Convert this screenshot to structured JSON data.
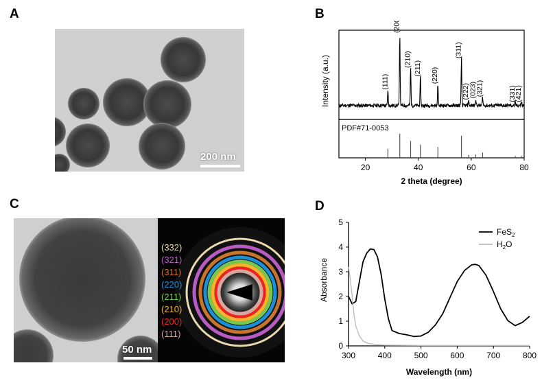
{
  "panels": {
    "a": "A",
    "b": "B",
    "c": "C",
    "d": "D"
  },
  "tem_a": {
    "scale_label": "200 nm"
  },
  "tem_c": {
    "scale_label": "50 nm"
  },
  "saed": {
    "rings": [
      {
        "label": "(332)",
        "color": "#ead9b0"
      },
      {
        "label": "(321)",
        "color": "#b85cc4"
      },
      {
        "label": "(311)",
        "color": "#c8742e"
      },
      {
        "label": "(220)",
        "color": "#1c8fd6"
      },
      {
        "label": "(211)",
        "color": "#78c850"
      },
      {
        "label": "(210)",
        "color": "#f4b42c"
      },
      {
        "label": "(200)",
        "color": "#ee2222"
      },
      {
        "label": "(111)",
        "color": "#d8a8a0"
      }
    ]
  },
  "chart_data": [
    {
      "type": "line",
      "panel": "B",
      "ylabel": "Intensity (a.u.)",
      "xlabel": "2 theta (degree)",
      "xlim": [
        10,
        80
      ],
      "xticks": [
        "20",
        "40",
        "60",
        "80"
      ],
      "reference_label": "PDF#71-0053",
      "peaks": [
        {
          "x": 28.5,
          "y": 0.22,
          "label": "(111)"
        },
        {
          "x": 33.0,
          "y": 1.0,
          "label": "(200)"
        },
        {
          "x": 37.1,
          "y": 0.52,
          "label": "(210)"
        },
        {
          "x": 40.8,
          "y": 0.4,
          "label": "(211)"
        },
        {
          "x": 47.4,
          "y": 0.3,
          "label": "(220)"
        },
        {
          "x": 56.3,
          "y": 0.65,
          "label": "(311)"
        },
        {
          "x": 59.0,
          "y": 0.08,
          "label": "(222)"
        },
        {
          "x": 61.7,
          "y": 0.1,
          "label": "(023)"
        },
        {
          "x": 64.3,
          "y": 0.12,
          "label": "(321)"
        },
        {
          "x": 76.6,
          "y": 0.05,
          "label": "(331)"
        },
        {
          "x": 79.0,
          "y": 0.05,
          "label": "(421)"
        }
      ],
      "reference_sticks": [
        {
          "x": 28.5,
          "y": 0.38
        },
        {
          "x": 33.0,
          "y": 1.0
        },
        {
          "x": 37.1,
          "y": 0.7
        },
        {
          "x": 40.8,
          "y": 0.55
        },
        {
          "x": 47.4,
          "y": 0.45
        },
        {
          "x": 56.3,
          "y": 0.92
        },
        {
          "x": 59.0,
          "y": 0.12
        },
        {
          "x": 61.7,
          "y": 0.14
        },
        {
          "x": 64.3,
          "y": 0.22
        },
        {
          "x": 76.6,
          "y": 0.08
        },
        {
          "x": 79.0,
          "y": 0.08
        }
      ]
    },
    {
      "type": "line",
      "panel": "D",
      "xlabel": "Wavelength (nm)",
      "ylabel": "Absorbance",
      "xlim": [
        300,
        800
      ],
      "ylim": [
        0,
        5
      ],
      "xticks": [
        "300",
        "400",
        "500",
        "600",
        "700",
        "800"
      ],
      "yticks": [
        "0",
        "1",
        "2",
        "3",
        "4",
        "5"
      ],
      "legend": "top-right",
      "series": [
        {
          "name": "FeS2",
          "color": "#000000",
          "x": [
            300,
            310,
            320,
            330,
            340,
            350,
            360,
            370,
            380,
            390,
            400,
            410,
            420,
            440,
            460,
            480,
            500,
            520,
            540,
            560,
            580,
            600,
            620,
            640,
            650,
            660,
            680,
            700,
            720,
            740,
            760,
            780,
            800
          ],
          "y": [
            2.0,
            1.7,
            1.8,
            2.6,
            3.4,
            3.75,
            3.92,
            3.9,
            3.6,
            2.9,
            1.9,
            1.1,
            0.62,
            0.5,
            0.45,
            0.38,
            0.4,
            0.55,
            0.85,
            1.3,
            1.95,
            2.6,
            3.05,
            3.28,
            3.3,
            3.25,
            2.85,
            2.2,
            1.5,
            1.02,
            0.82,
            0.95,
            1.2
          ]
        },
        {
          "name": "H2O",
          "color": "#bdbdbd",
          "x": [
            300,
            305,
            310,
            315,
            320,
            330,
            340,
            350,
            360,
            380,
            400,
            500,
            600,
            700,
            800
          ],
          "y": [
            3.2,
            2.7,
            2.0,
            1.3,
            0.8,
            0.4,
            0.2,
            0.12,
            0.08,
            0.05,
            0.03,
            0.02,
            0.02,
            0.02,
            0.02
          ]
        }
      ],
      "legend_entries": [
        {
          "base": "FeS",
          "sub": "2",
          "color": "#000000"
        },
        {
          "base": "H",
          "sub": "2",
          "tail": "O",
          "color": "#bdbdbd"
        }
      ]
    }
  ]
}
